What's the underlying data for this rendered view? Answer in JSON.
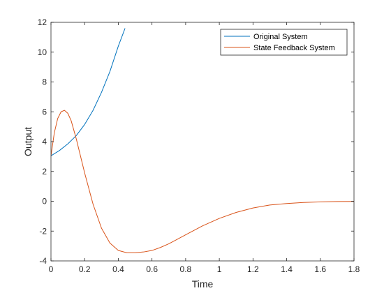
{
  "chart_data": {
    "type": "line",
    "title": "",
    "xlabel": "Time",
    "ylabel": "Output",
    "xlim": [
      0,
      1.8
    ],
    "ylim": [
      -4,
      12
    ],
    "xticks": [
      0,
      0.2,
      0.4,
      0.6,
      0.8,
      1,
      1.2,
      1.4,
      1.6,
      1.8
    ],
    "xtick_labels": [
      "0",
      "0.2",
      "0.4",
      "0.6",
      "0.8",
      "1",
      "1.2",
      "1.4",
      "1.6",
      "1.8"
    ],
    "yticks": [
      -4,
      -2,
      0,
      2,
      4,
      6,
      8,
      10,
      12
    ],
    "ytick_labels": [
      "-4",
      "-2",
      "0",
      "2",
      "4",
      "6",
      "8",
      "10",
      "12"
    ],
    "grid": false,
    "legend_position": "top-right",
    "series": [
      {
        "name": "Original System",
        "color": "#0072BD",
        "x": [
          0,
          0.05,
          0.1,
          0.15,
          0.2,
          0.25,
          0.3,
          0.35,
          0.4,
          0.44
        ],
        "y": [
          3.05,
          3.4,
          3.85,
          4.4,
          5.15,
          6.1,
          7.3,
          8.7,
          10.4,
          11.6
        ]
      },
      {
        "name": "State Feedback System",
        "color": "#D95319",
        "x": [
          0,
          0.02,
          0.04,
          0.06,
          0.08,
          0.1,
          0.12,
          0.15,
          0.2,
          0.25,
          0.3,
          0.35,
          0.4,
          0.45,
          0.5,
          0.55,
          0.6,
          0.65,
          0.7,
          0.8,
          0.9,
          1.0,
          1.1,
          1.2,
          1.3,
          1.4,
          1.5,
          1.6,
          1.7,
          1.8
        ],
        "y": [
          3.05,
          4.6,
          5.55,
          6.0,
          6.1,
          5.9,
          5.4,
          4.2,
          1.9,
          -0.2,
          -1.8,
          -2.8,
          -3.3,
          -3.45,
          -3.45,
          -3.4,
          -3.3,
          -3.1,
          -2.85,
          -2.25,
          -1.65,
          -1.15,
          -0.75,
          -0.45,
          -0.25,
          -0.15,
          -0.08,
          -0.04,
          -0.02,
          -0.01
        ]
      }
    ]
  }
}
